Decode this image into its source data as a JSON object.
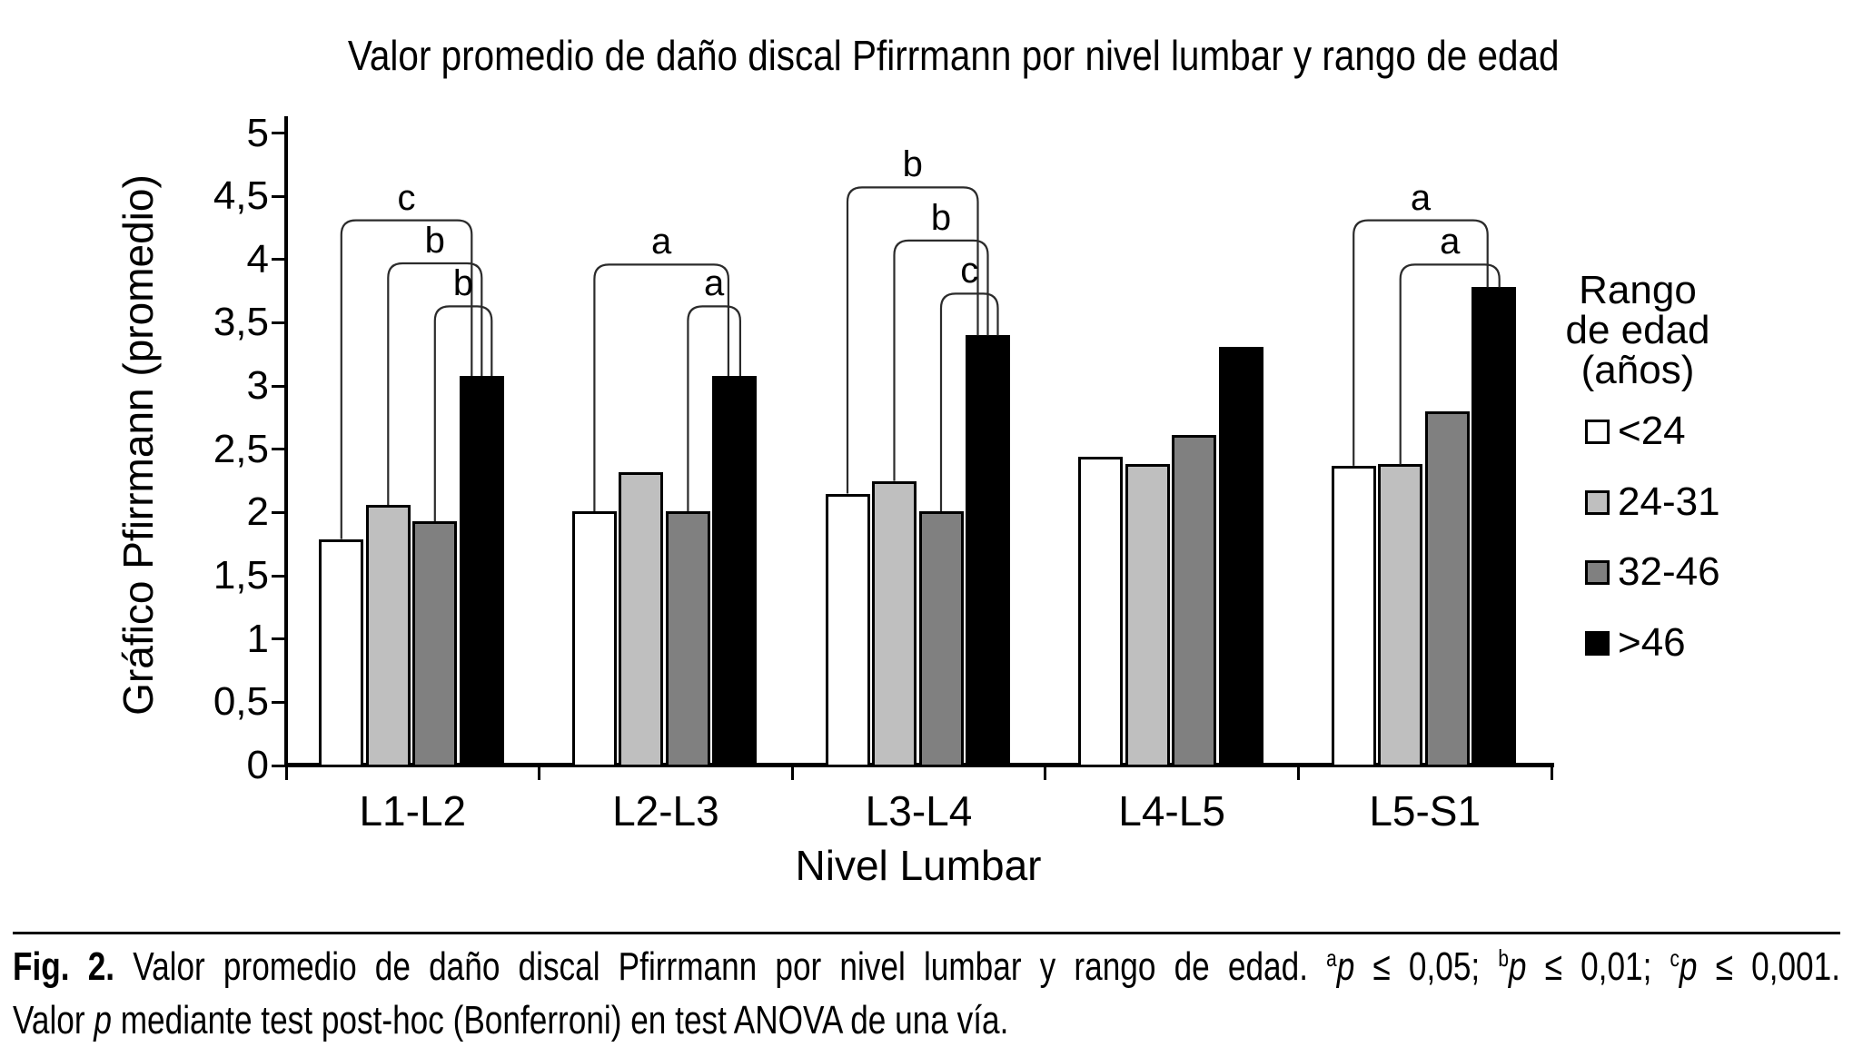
{
  "chart_data": {
    "type": "bar",
    "title": "Valor promedio de daño discal Pfirrmann por nivel lumbar y rango de edad",
    "xlabel": "Nivel Lumbar",
    "ylabel": "Gráfico Pfirrmann (promedio)",
    "categories": [
      "L1-L2",
      "L2-L3",
      "L3-L4",
      "L4-L5",
      "L5-S1"
    ],
    "series": [
      {
        "name": "<24",
        "color": "#ffffff",
        "values": [
          1.79,
          2.01,
          2.15,
          2.44,
          2.37
        ]
      },
      {
        "name": "24-31",
        "color": "#bfbfbf",
        "values": [
          2.06,
          2.32,
          2.25,
          2.38,
          2.38
        ]
      },
      {
        "name": "32-46",
        "color": "#808080",
        "values": [
          1.93,
          2.01,
          2.01,
          2.61,
          2.8
        ]
      },
      {
        "name": ">46",
        "color": "#000000",
        "values": [
          3.08,
          3.08,
          3.4,
          3.31,
          3.78
        ]
      }
    ],
    "ylim": [
      0,
      5
    ],
    "ytick_labels": [
      "0",
      "0,5",
      "1",
      "1,5",
      "2",
      "2,5",
      "3",
      "3,5",
      "4",
      "4,5",
      "5"
    ],
    "grid": false,
    "legend_position": "right",
    "legend": {
      "title_lines": [
        "Rango",
        "de edad",
        "(años)"
      ],
      "items": [
        {
          "label": "<24",
          "color": "#ffffff"
        },
        {
          "label": "24-31",
          "color": "#bfbfbf"
        },
        {
          "label": "32-46",
          "color": "#808080"
        },
        {
          "label": ">46",
          "color": "#000000"
        }
      ]
    },
    "significance_brackets": [
      {
        "category": "L1-L2",
        "from_series": "<24",
        "to_series": ">46",
        "label": "c",
        "height": 4.31
      },
      {
        "category": "L1-L2",
        "from_series": "24-31",
        "to_series": ">46",
        "label": "b",
        "height": 3.97
      },
      {
        "category": "L1-L2",
        "from_series": "32-46",
        "to_series": ">46",
        "label": "b",
        "height": 3.63
      },
      {
        "category": "L2-L3",
        "from_series": "<24",
        "to_series": ">46",
        "label": "a",
        "height": 3.96
      },
      {
        "category": "L2-L3",
        "from_series": "32-46",
        "to_series": ">46",
        "label": "a",
        "height": 3.63
      },
      {
        "category": "L3-L4",
        "from_series": "<24",
        "to_series": ">46",
        "label": "b",
        "height": 4.57
      },
      {
        "category": "L3-L4",
        "from_series": "24-31",
        "to_series": ">46",
        "label": "b",
        "height": 4.15
      },
      {
        "category": "L3-L4",
        "from_series": "32-46",
        "to_series": ">46",
        "label": "c",
        "height": 3.73
      },
      {
        "category": "L5-S1",
        "from_series": "<24",
        "to_series": ">46",
        "label": "a",
        "height": 4.31
      },
      {
        "category": "L5-S1",
        "from_series": "24-31",
        "to_series": ">46",
        "label": "a",
        "height": 3.96
      }
    ]
  },
  "caption": {
    "line1_segments": [
      {
        "text": "Fig. 2.",
        "style": "b"
      },
      {
        "text": " Valor promedio de daño discal Pfirrmann por nivel lumbar y rango de edad. ",
        "style": "n"
      },
      {
        "text": "a",
        "style": "sup"
      },
      {
        "text": "p",
        "style": "i"
      },
      {
        "text": " ≤ 0,05; ",
        "style": "n"
      },
      {
        "text": "b",
        "style": "sup"
      },
      {
        "text": "p",
        "style": "i"
      },
      {
        "text": " ≤ 0,01; ",
        "style": "n"
      },
      {
        "text": "c",
        "style": "sup"
      },
      {
        "text": "p",
        "style": "i"
      },
      {
        "text": " ≤ 0,001.",
        "style": "n"
      }
    ],
    "line2_segments": [
      {
        "text": "Valor ",
        "style": "n"
      },
      {
        "text": "p",
        "style": "i"
      },
      {
        "text": " mediante test post-hoc (Bonferroni) en test ANOVA de una vía.",
        "style": "n"
      }
    ]
  }
}
